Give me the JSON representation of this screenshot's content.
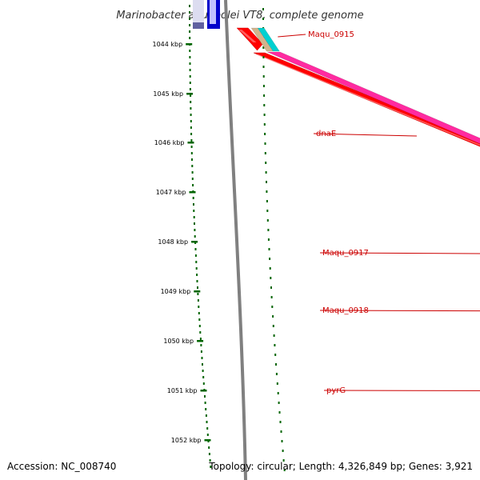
{
  "title": "Marinobacter aquaeolei VT8, complete genome",
  "footer": {
    "accession": "Accession: NC_008740",
    "topology": "Topology: circular; Length: 4,326,849 bp; Genes: 3,921"
  },
  "ruler": {
    "unit": "kbp",
    "ticks": [
      "1044 kbp",
      "1045 kbp",
      "1046 kbp",
      "1047 kbp",
      "1048 kbp",
      "1049 kbp",
      "1050 kbp",
      "1051 kbp",
      "1052 kbp"
    ]
  },
  "genes": [
    {
      "name": "Maqu_0915",
      "color": "#00d0d0"
    },
    {
      "name": "dnaE",
      "color": "#ff2aa0"
    },
    {
      "name": "Maqu_0917",
      "color": "#6a5acd"
    },
    {
      "name": "Maqu_0918",
      "color": "#f0e68c"
    },
    {
      "name": "pyrG",
      "color": "#00bfff"
    }
  ],
  "colors": {
    "cds": "#ff0000",
    "backbone": "#808080",
    "ruler": "#006400",
    "label": "#cc0000",
    "prev_gene": "#0000cc",
    "tan_gene": "#d2b48c",
    "olive_gene": "#6b8e23"
  }
}
